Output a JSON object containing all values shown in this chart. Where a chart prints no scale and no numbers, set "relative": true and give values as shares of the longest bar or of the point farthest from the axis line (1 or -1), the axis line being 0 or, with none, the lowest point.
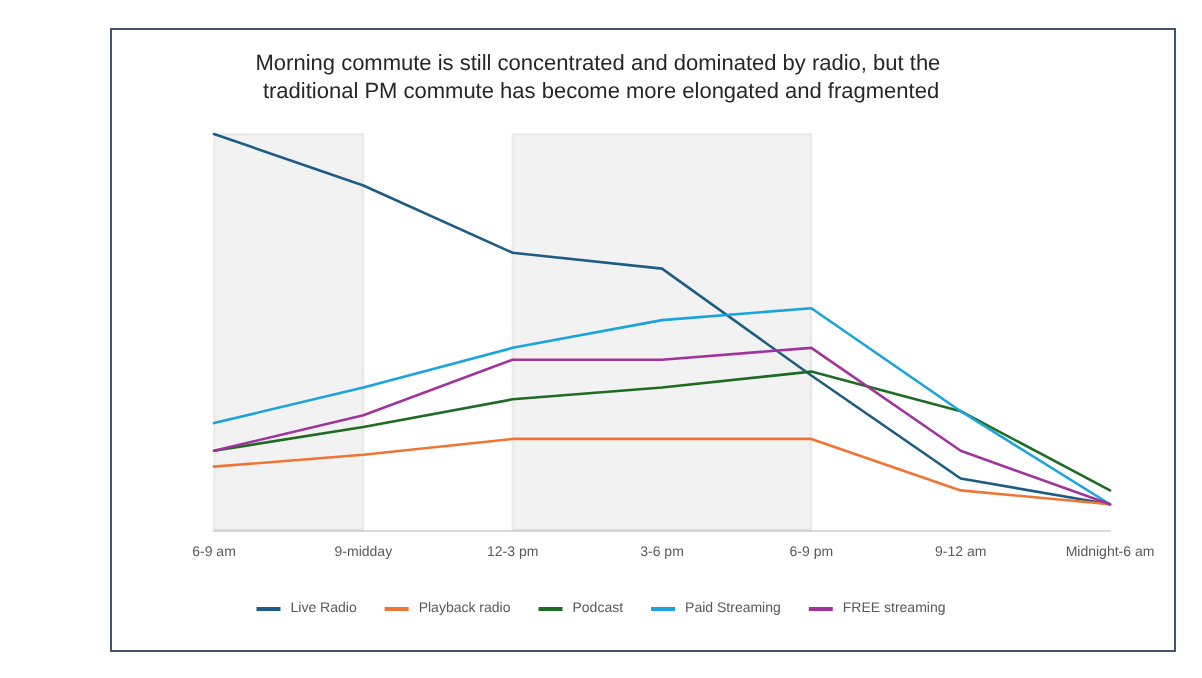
{
  "chart_data": {
    "type": "line",
    "title": "Morning commute is still concentrated and dominated by radio, but the traditional PM commute has become more elongated and fragmented",
    "categories": [
      "6-9 am",
      "9-midday",
      "12-3 pm",
      "3-6 pm",
      "6-9 pm",
      "9-12 am",
      "Midnight-6 am"
    ],
    "relative": true,
    "series": [
      {
        "name": "Live Radio",
        "color": "#1f5c84",
        "values": [
          1,
          0.87,
          0.7,
          0.66,
          0.39,
          0.13,
          0.065
        ]
      },
      {
        "name": "Playback radio",
        "color": "#f07535",
        "values": [
          0.16,
          0.19,
          0.23,
          0.23,
          0.23,
          0.1,
          0.065
        ]
      },
      {
        "name": "Podcast",
        "color": "#1e6b24",
        "values": [
          0.2,
          0.26,
          0.33,
          0.36,
          0.4,
          0.3,
          0.1
        ]
      },
      {
        "name": "Paid Streaming",
        "color": "#1aa3dc",
        "values": [
          0.27,
          0.36,
          0.46,
          0.53,
          0.56,
          0.3,
          0.065
        ]
      },
      {
        "name": "FREE streaming",
        "color": "#a0349b",
        "values": [
          0.2,
          0.29,
          0.43,
          0.43,
          0.46,
          0.2,
          0.065
        ]
      }
    ],
    "bands": [
      {
        "axis": "x",
        "from": "6-9 am",
        "to": "9-midday",
        "color": "#1a1a1a"
      },
      {
        "axis": "x",
        "from": "12-3 pm",
        "to": "6-9 pm",
        "color": "#1a1a1a"
      }
    ],
    "legend": "bottom",
    "grid": false,
    "marker": "none",
    "line_style": "solid"
  }
}
